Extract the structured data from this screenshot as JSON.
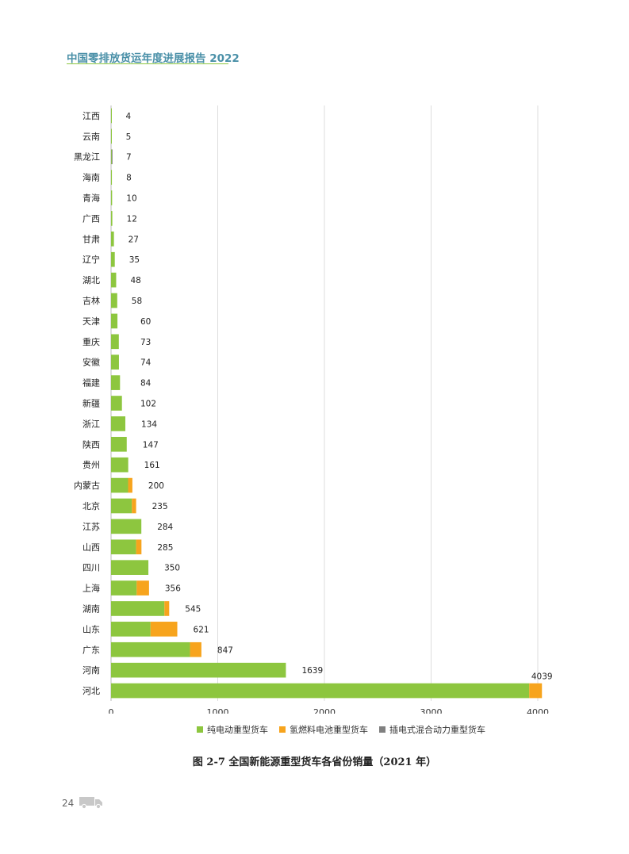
{
  "header": {
    "title": "中国零排放货运年度进展报告 2022"
  },
  "footer": {
    "page_number": "24",
    "truck_icon": "truck-icon"
  },
  "colors": {
    "bev": "#8dc63f",
    "fcev": "#f7a41d",
    "phev": "#808080",
    "grid": "#dddddd"
  },
  "chart_data": {
    "type": "bar",
    "orientation": "horizontal",
    "stacked": true,
    "caption": "图 2-7 全国新能源重型货车各省份销量（2021 年）",
    "categories": [
      "江西",
      "云南",
      "黑龙江",
      "海南",
      "青海",
      "广西",
      "甘肃",
      "辽宁",
      "湖北",
      "吉林",
      "天津",
      "重庆",
      "安徽",
      "福建",
      "新疆",
      "浙江",
      "陕西",
      "贵州",
      "内蒙古",
      "北京",
      "江苏",
      "山西",
      "四川",
      "上海",
      "湖南",
      "山东",
      "广东",
      "河南",
      "河北"
    ],
    "totals": [
      4,
      5,
      7,
      8,
      10,
      12,
      27,
      35,
      48,
      58,
      60,
      73,
      74,
      84,
      102,
      134,
      147,
      161,
      200,
      235,
      284,
      285,
      350,
      356,
      545,
      621,
      847,
      1639,
      4039
    ],
    "series": [
      {
        "name": "纯电动重型货车",
        "color": "#8dc63f",
        "values": [
          4,
          5,
          6,
          8,
          10,
          12,
          27,
          35,
          48,
          58,
          60,
          73,
          74,
          84,
          102,
          134,
          147,
          161,
          160,
          195,
          284,
          235,
          350,
          240,
          500,
          370,
          740,
          1639,
          3920
        ]
      },
      {
        "name": "氢燃料电池重型货车",
        "color": "#f7a41d",
        "values": [
          0,
          0,
          0,
          0,
          0,
          0,
          0,
          0,
          0,
          0,
          0,
          0,
          0,
          0,
          0,
          0,
          0,
          0,
          40,
          40,
          0,
          50,
          0,
          116,
          45,
          251,
          107,
          0,
          119
        ]
      },
      {
        "name": "插电式混合动力重型货车",
        "color": "#808080",
        "values": [
          0,
          0,
          1,
          0,
          0,
          0,
          0,
          0,
          0,
          0,
          0,
          0,
          0,
          0,
          0,
          0,
          0,
          0,
          0,
          0,
          0,
          0,
          0,
          0,
          0,
          0,
          0,
          0,
          0
        ]
      }
    ],
    "xlim": [
      0,
      4000
    ],
    "xticks": [
      "0",
      "1000",
      "2000",
      "3000",
      "4000"
    ],
    "grid": true,
    "legend": "bottom"
  }
}
